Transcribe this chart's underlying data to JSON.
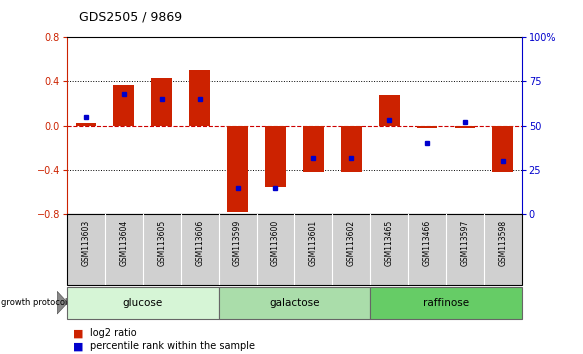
{
  "title": "GDS2505 / 9869",
  "samples": [
    "GSM113603",
    "GSM113604",
    "GSM113605",
    "GSM113606",
    "GSM113599",
    "GSM113600",
    "GSM113601",
    "GSM113602",
    "GSM113465",
    "GSM113466",
    "GSM113597",
    "GSM113598"
  ],
  "log2_ratio": [
    0.02,
    0.37,
    0.43,
    0.5,
    -0.78,
    -0.55,
    -0.42,
    -0.42,
    0.28,
    -0.02,
    -0.02,
    -0.42
  ],
  "percentile_rank": [
    55,
    68,
    65,
    65,
    15,
    15,
    32,
    32,
    53,
    40,
    52,
    30
  ],
  "groups": [
    {
      "label": "glucose",
      "start": 0,
      "end": 4,
      "color": "#d6f5d6"
    },
    {
      "label": "galactose",
      "start": 4,
      "end": 8,
      "color": "#aaddaa"
    },
    {
      "label": "raffinose",
      "start": 8,
      "end": 12,
      "color": "#66cc66"
    }
  ],
  "ylim": [
    -0.8,
    0.8
  ],
  "y2lim": [
    0,
    100
  ],
  "yticks": [
    -0.8,
    -0.4,
    0.0,
    0.4,
    0.8
  ],
  "y2ticks": [
    0,
    25,
    50,
    75,
    100
  ],
  "y2ticklabels": [
    "0",
    "25",
    "50",
    "75",
    "100%"
  ],
  "bar_color": "#cc2200",
  "dot_color": "#0000cc",
  "zero_line_color": "#cc0000",
  "bar_width": 0.55,
  "dot_size": 3.5
}
